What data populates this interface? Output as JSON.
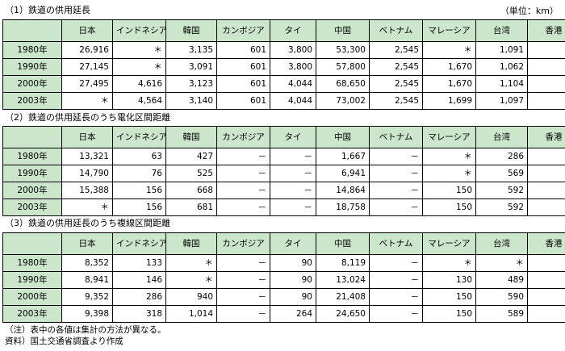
{
  "unit_label": "（単位：km）",
  "tables": [
    {
      "title": "（1）鉄道の供用延長",
      "headers": [
        "",
        "日本",
        "インドネシア",
        "韓国",
        "カンボジア",
        "タイ",
        "中国",
        "ベトナム",
        "マレーシア",
        "台湾",
        "香港"
      ],
      "rows": [
        [
          "1980年",
          "26,916",
          "＊",
          "3,135",
          "601",
          "3,800",
          "53,300",
          "2,545",
          "＊",
          "1,091",
          "＊"
        ],
        [
          "1990年",
          "27,145",
          "＊",
          "3,091",
          "601",
          "3,800",
          "57,800",
          "2,545",
          "1,670",
          "1,062",
          "57"
        ],
        [
          "2000年",
          "27,495",
          "4,616",
          "3,123",
          "601",
          "4,044",
          "68,650",
          "2,545",
          "1,670",
          "1,104",
          "＊"
        ],
        [
          "2003年",
          "＊",
          "4,564",
          "3,140",
          "601",
          "4,044",
          "73,002",
          "2,545",
          "1,699",
          "1,097",
          "＊"
        ]
      ]
    },
    {
      "title": "（2）鉄道の供用延長のうち電化区間距離",
      "headers": [
        "",
        "日本",
        "インドネシア",
        "韓国",
        "カンボジア",
        "タイ",
        "中国",
        "ベトナム",
        "マレーシア",
        "台湾",
        "香港"
      ],
      "rows": [
        [
          "1980年",
          "13,321",
          "63",
          "427",
          "－",
          "－",
          "1,667",
          "－",
          "＊",
          "286",
          "＊"
        ],
        [
          "1990年",
          "14,790",
          "76",
          "525",
          "－",
          "－",
          "6,941",
          "－",
          "＊",
          "569",
          "＊"
        ],
        [
          "2000年",
          "15,388",
          "156",
          "668",
          "－",
          "－",
          "14,864",
          "－",
          "150",
          "592",
          "＊"
        ],
        [
          "2003年",
          "＊",
          "156",
          "681",
          "－",
          "－",
          "18,758",
          "－",
          "150",
          "592",
          "＊"
        ]
      ]
    },
    {
      "title": "（3）鉄道の供用延長のうち複線区間距離",
      "headers": [
        "",
        "日本",
        "インドネシア",
        "韓国",
        "カンボジア",
        "タイ",
        "中国",
        "ベトナム",
        "マレーシア",
        "台湾",
        "香港"
      ],
      "rows": [
        [
          "1980年",
          "8,352",
          "133",
          "＊",
          "－",
          "90",
          "8,119",
          "－",
          "＊",
          "＊",
          "＊"
        ],
        [
          "1990年",
          "8,941",
          "146",
          "＊",
          "－",
          "90",
          "13,024",
          "－",
          "130",
          "489",
          "＊"
        ],
        [
          "2000年",
          "9,352",
          "286",
          "940",
          "－",
          "90",
          "21,408",
          "－",
          "150",
          "590",
          "＊"
        ],
        [
          "2003年",
          "9,398",
          "318",
          "1,014",
          "－",
          "264",
          "24,650",
          "－",
          "150",
          "589",
          "＊"
        ]
      ]
    }
  ],
  "notes": [
    "（注）表中の各値は集計の方法が異なる。",
    "資料）国土交通省調査より作成"
  ],
  "colors": {
    "header_bg": "#cce6cc",
    "border": "#000000"
  }
}
